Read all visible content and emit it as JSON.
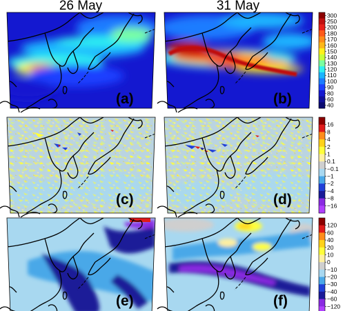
{
  "columns": [
    "26 May",
    "31 May"
  ],
  "panels": [
    {
      "label": "(a)",
      "row": 0,
      "col": 0
    },
    {
      "label": "(b)",
      "row": 0,
      "col": 1
    },
    {
      "label": "(c)",
      "row": 1,
      "col": 0
    },
    {
      "label": "(d)",
      "row": 1,
      "col": 1
    },
    {
      "label": "(e)",
      "row": 2,
      "col": 0
    },
    {
      "label": "(f)",
      "row": 2,
      "col": 1
    }
  ],
  "colorbars": [
    {
      "row": 0,
      "ticks": [
        "300",
        "250",
        "200",
        "180",
        "170",
        "160",
        "150",
        "140",
        "130",
        "120",
        "110",
        "100",
        "90",
        "80",
        "60",
        "40"
      ],
      "colors": [
        "#8b0000",
        "#c01010",
        "#e8201a",
        "#ff5a1a",
        "#ff8c1a",
        "#ffb81a",
        "#fff01a",
        "#c8ff3a",
        "#7affa0",
        "#2ef0f0",
        "#1ab4ff",
        "#1a7cff",
        "#1a40ff",
        "#1418d0",
        "#10109a",
        "#0a0a70"
      ]
    },
    {
      "row": 1,
      "ticks": [
        "16",
        "8",
        "4",
        "2",
        "1",
        "0.1",
        "−0.1",
        "−1",
        "−2",
        "−4",
        "−8",
        "−16"
      ],
      "colors": [
        "#8b0000",
        "#e01a1a",
        "#ff8c1a",
        "#ffd21a",
        "#ffff3a",
        "#fff0a0",
        "#cfcfcf",
        "#a8d8f0",
        "#4aa8e8",
        "#2040d8",
        "#1a1a98",
        "#8a2be2",
        "#b040ff"
      ]
    },
    {
      "row": 2,
      "ticks": [
        "120",
        "60",
        "40",
        "20",
        "10",
        "0",
        "−10",
        "−20",
        "−30",
        "−40",
        "−60",
        "−120"
      ],
      "colors": [
        "#8b0000",
        "#e01a1a",
        "#ff8c1a",
        "#ffd21a",
        "#ffff3a",
        "#fff0a0",
        "#cfcfcf",
        "#a8d8f0",
        "#4aa8e8",
        "#2040d8",
        "#1a1a98",
        "#8a2be2",
        "#b040ff"
      ]
    }
  ],
  "colors": {
    "background": "#ffffff",
    "land_gray": "#c8c8c8",
    "coast": "#000000"
  }
}
